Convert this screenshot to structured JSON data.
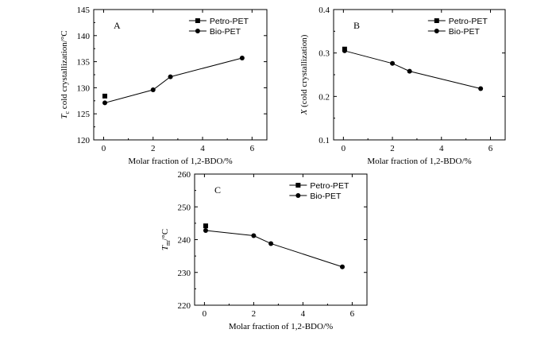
{
  "chart_data": [
    {
      "type": "line",
      "panel_label": "A",
      "xlabel": "Molar fraction of 1,2-BDO/%",
      "ylabel": "T_c cold crystallization/°C",
      "ylabel_parts": {
        "var": "T",
        "sub": "c",
        "rest": " cold crystallization/°C"
      },
      "xlim": [
        -0.4,
        6.6
      ],
      "ylim": [
        120,
        145
      ],
      "xticks": [
        "0",
        "2",
        "4",
        "6"
      ],
      "xtick_values": [
        0,
        2,
        4,
        6
      ],
      "yticks": [
        "120",
        "125",
        "130",
        "135",
        "140",
        "145"
      ],
      "ytick_values": [
        120,
        125,
        130,
        135,
        140,
        145
      ],
      "legend_position": "top-right",
      "series": [
        {
          "name": "Petro-PET",
          "marker": "square",
          "line": false,
          "x": [
            0.05
          ],
          "y": [
            128.4
          ]
        },
        {
          "name": "Bio-PET",
          "marker": "circle",
          "line": true,
          "x": [
            0.05,
            2.0,
            2.7,
            5.6
          ],
          "y": [
            127.1,
            129.6,
            132.1,
            135.7
          ]
        }
      ]
    },
    {
      "type": "line",
      "panel_label": "B",
      "xlabel": "Molar fraction of 1,2-BDO/%",
      "ylabel": "X (cold crystallization)",
      "ylabel_parts": {
        "var": "X",
        "sub": "",
        "rest": " (cold crystallization)"
      },
      "xlim": [
        -0.4,
        6.6
      ],
      "ylim": [
        0.1,
        0.4
      ],
      "xticks": [
        "0",
        "2",
        "4",
        "6"
      ],
      "xtick_values": [
        0,
        2,
        4,
        6
      ],
      "yticks": [
        "0.1",
        "0.2",
        "0.3",
        "0.4"
      ],
      "ytick_values": [
        0.1,
        0.2,
        0.3,
        0.4
      ],
      "legend_position": "top-right",
      "series": [
        {
          "name": "Petro-PET",
          "marker": "square",
          "line": false,
          "x": [
            0.05
          ],
          "y": [
            0.309
          ]
        },
        {
          "name": "Bio-PET",
          "marker": "circle",
          "line": true,
          "x": [
            0.05,
            2.0,
            2.7,
            5.6
          ],
          "y": [
            0.305,
            0.276,
            0.258,
            0.218
          ]
        }
      ]
    },
    {
      "type": "line",
      "panel_label": "C",
      "xlabel": "Molar fraction of 1,2-BDO/%",
      "ylabel": "T_m/°C",
      "ylabel_parts": {
        "var": "T",
        "sub": "m",
        "rest": "/°C"
      },
      "xlim": [
        -0.4,
        6.6
      ],
      "ylim": [
        220,
        260
      ],
      "xticks": [
        "0",
        "2",
        "4",
        "6"
      ],
      "xtick_values": [
        0,
        2,
        4,
        6
      ],
      "yticks": [
        "220",
        "230",
        "240",
        "250",
        "260"
      ],
      "ytick_values": [
        220,
        230,
        240,
        250,
        260
      ],
      "legend_position": "top-right",
      "series": [
        {
          "name": "Petro-PET",
          "marker": "square",
          "line": false,
          "x": [
            0.05
          ],
          "y": [
            244.2
          ]
        },
        {
          "name": "Bio-PET",
          "marker": "circle",
          "line": true,
          "x": [
            0.05,
            2.0,
            2.7,
            5.6
          ],
          "y": [
            242.8,
            241.2,
            238.8,
            231.7
          ]
        }
      ]
    }
  ]
}
